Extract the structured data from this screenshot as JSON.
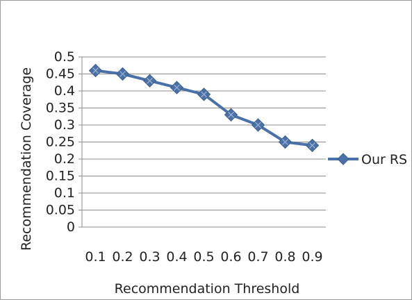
{
  "chart_data": {
    "type": "line",
    "title": "",
    "xlabel": "Recommendation Threshold",
    "ylabel": "Recommendation Coverage",
    "categories": [
      "0.1",
      "0.2",
      "0.3",
      "0.4",
      "0.5",
      "0.6",
      "0.7",
      "0.8",
      "0.9"
    ],
    "yticks": [
      "0",
      "0.05",
      "0.1",
      "0.15",
      "0.2",
      "0.25",
      "0.3",
      "0.35",
      "0.4",
      "0.45",
      "0.5"
    ],
    "ylim": [
      0,
      0.5
    ],
    "grid": true,
    "legend_position": "right",
    "series": [
      {
        "name": "Our RS",
        "values": [
          0.46,
          0.45,
          0.43,
          0.41,
          0.39,
          0.33,
          0.3,
          0.25,
          0.24
        ],
        "color": "#4a72a8"
      }
    ]
  }
}
